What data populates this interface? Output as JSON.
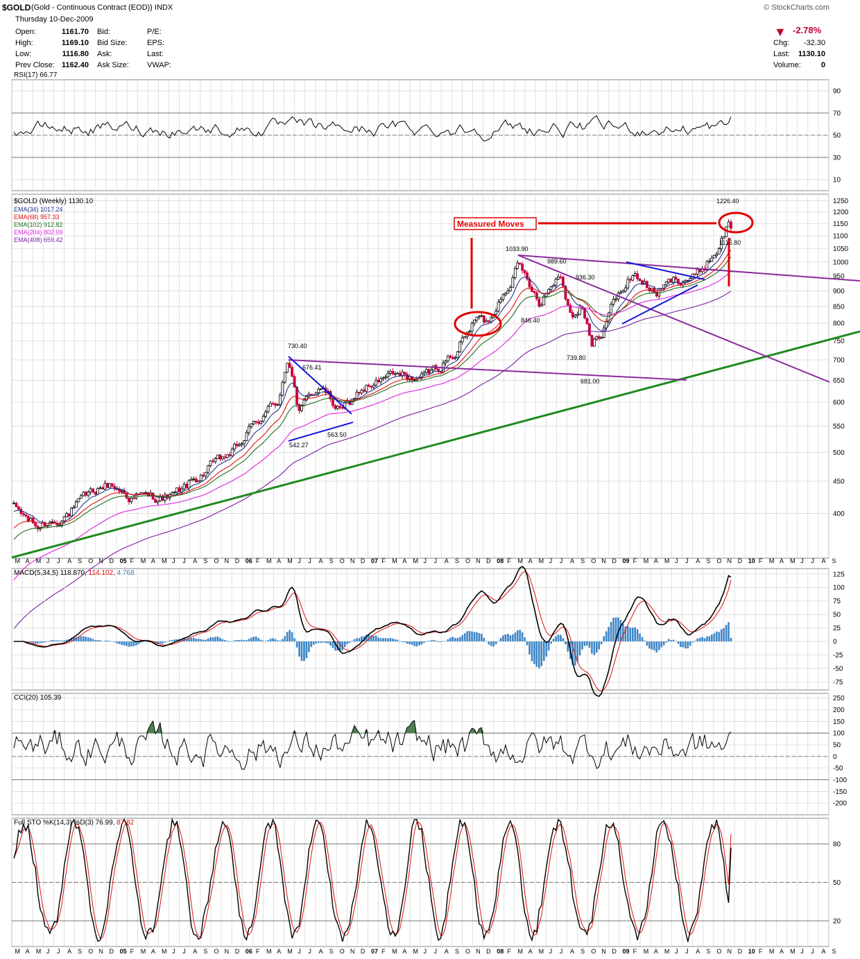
{
  "header": {
    "symbol": "$GOLD",
    "description": "(Gold - Continuous Contract (EOD))",
    "exchange": "INDX",
    "source": "© StockCharts.com",
    "date": "Thursday  10-Dec-2009",
    "fields": [
      {
        "label": "Open:",
        "value": "1161.70"
      },
      {
        "label": "High:",
        "value": "1169.10"
      },
      {
        "label": "Low:",
        "value": "1116.80"
      },
      {
        "label": "Prev Close:",
        "value": "1162.40"
      }
    ],
    "fields2": [
      "Bid:",
      "Bid Size:",
      "Ask:",
      "Ask Size:"
    ],
    "fields3": [
      "P/E:",
      "EPS:",
      "Last:",
      "VWAP:"
    ],
    "change_pct": "-2.78%",
    "chg_label": "Chg:",
    "chg": "-32.30",
    "last_label": "Last:",
    "last": "1130.10",
    "volume_label": "Volume:",
    "volume": "0"
  },
  "colors": {
    "price_up": "#000000",
    "price_down": "#c8003c",
    "ema34": "#23358c",
    "ema68": "#e01010",
    "ema102": "#1f6e1f",
    "ema204": "#e020e0",
    "ema408": "#7a1fa0",
    "trend_green": "#1f8a1f",
    "trend_purple": "#8a2a9a",
    "trend_blue": "#1414d8",
    "annot_red": "#e00000",
    "rsi_fill": "#4e8050",
    "cci_fill_up": "#4e8050",
    "cci_fill_dn": "#9a5050",
    "macd_hist": "#3d86c6",
    "grid": "#d4d4d4"
  },
  "chart_data": [
    {
      "type": "line",
      "title": "RSI(17) 66.77",
      "ylim": [
        0,
        100
      ],
      "yticks": [
        10,
        30,
        50,
        70,
        90
      ],
      "reference_lines": [
        30,
        50,
        70
      ],
      "series": [
        {
          "name": "RSI(17)",
          "last": 66.77
        }
      ]
    },
    {
      "type": "candlestick",
      "title": "$GOLD (Weekly) 1130.10",
      "scale": "log",
      "ylim": [
        340,
        1280
      ],
      "yticks": [
        400,
        450,
        500,
        550,
        600,
        650,
        700,
        750,
        800,
        850,
        900,
        950,
        1000,
        1050,
        1100,
        1150,
        1200,
        1250
      ],
      "x_labels": [
        "M",
        "A",
        "M",
        "J",
        "J",
        "A",
        "S",
        "O",
        "N",
        "D",
        "05",
        "F",
        "M",
        "A",
        "M",
        "J",
        "J",
        "A",
        "S",
        "O",
        "N",
        "D",
        "06",
        "F",
        "M",
        "A",
        "M",
        "J",
        "J",
        "A",
        "S",
        "O",
        "N",
        "D",
        "07",
        "F",
        "M",
        "A",
        "M",
        "J",
        "J",
        "A",
        "S",
        "O",
        "N",
        "D",
        "08",
        "F",
        "M",
        "A",
        "M",
        "J",
        "J",
        "A",
        "S",
        "O",
        "N",
        "D",
        "09",
        "F",
        "M",
        "A",
        "M",
        "J",
        "J",
        "A",
        "S",
        "O",
        "N",
        "D",
        "10",
        "F",
        "M",
        "A",
        "M",
        "J",
        "J",
        "A",
        "S"
      ],
      "price_anchors": [
        [
          "2004-03",
          410
        ],
        [
          "2004-05",
          380
        ],
        [
          "2004-08",
          400
        ],
        [
          "2004-11",
          440
        ],
        [
          "2004-12",
          445
        ],
        [
          "2005-02",
          425
        ],
        [
          "2005-06",
          425
        ],
        [
          "2005-09",
          465
        ],
        [
          "2005-12",
          505
        ],
        [
          "2006-02",
          560
        ],
        [
          "2006-04",
          600
        ],
        [
          "2006-05",
          715
        ],
        [
          "2006-06",
          575
        ],
        [
          "2006-08",
          640
        ],
        [
          "2006-10",
          575
        ],
        [
          "2006-12",
          630
        ],
        [
          "2007-03",
          660
        ],
        [
          "2007-06",
          655
        ],
        [
          "2007-09",
          720
        ],
        [
          "2007-11",
          815
        ],
        [
          "2007-12",
          800
        ],
        [
          "2008-02",
          930
        ],
        [
          "2008-03",
          985
        ],
        [
          "2008-05",
          870
        ],
        [
          "2008-07",
          960
        ],
        [
          "2008-08",
          820
        ],
        [
          "2008-09",
          865
        ],
        [
          "2008-10",
          730
        ],
        [
          "2008-11",
          780
        ],
        [
          "2008-12",
          860
        ],
        [
          "2009-02",
          960
        ],
        [
          "2009-04",
          890
        ],
        [
          "2009-06",
          940
        ],
        [
          "2009-08",
          950
        ],
        [
          "2009-10",
          1050
        ],
        [
          "2009-11",
          1150
        ],
        [
          "2009-12",
          1130
        ]
      ],
      "annotations": [
        "730.40",
        "676.41",
        "542.27",
        "563.50",
        "1033.90",
        "989.60",
        "936.30",
        "846.40",
        "739.80",
        "681.00",
        "1226.40",
        "1116.80"
      ],
      "callout": "Measured Moves",
      "legend": [
        {
          "name": "EMA(34)",
          "last": 1017.24
        },
        {
          "name": "EMA(68)",
          "last": 957.33
        },
        {
          "name": "EMA(102)",
          "last": 912.82
        },
        {
          "name": "EMA(204)",
          "last": 802.09
        },
        {
          "name": "EMA(408)",
          "last": 659.42
        }
      ]
    },
    {
      "type": "line",
      "title": "MACD(5,34,5)",
      "values": {
        "macd": 118.87,
        "signal": 114.102,
        "hist": 4.768
      },
      "ylim": [
        -90,
        135
      ],
      "yticks": [
        -75,
        -50,
        -25,
        0,
        25,
        50,
        75,
        100,
        125
      ]
    },
    {
      "type": "line",
      "title": "CCI(20) 105.39",
      "ylim": [
        -250,
        270
      ],
      "yticks": [
        -200,
        -150,
        -100,
        -50,
        0,
        50,
        100,
        150,
        200,
        250
      ],
      "reference_lines": [
        -100,
        0,
        100
      ]
    },
    {
      "type": "line",
      "title": "Full STO %K(14,3) %D(3)",
      "values": {
        "k": 76.99,
        "d": 87.82
      },
      "ylim": [
        0,
        100
      ],
      "yticks": [
        20,
        50,
        80
      ]
    }
  ]
}
